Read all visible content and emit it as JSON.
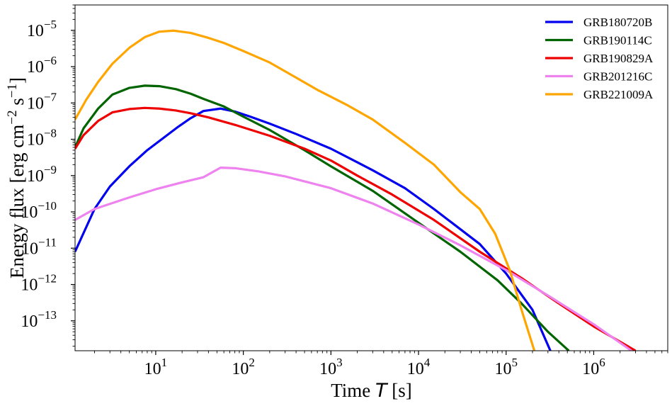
{
  "chart_data": {
    "type": "line",
    "xscale": "log",
    "yscale": "log",
    "xlim": [
      1.2,
      7000000
    ],
    "ylim": [
      1.5e-14,
      5e-05
    ],
    "xlabel": "Time T [s]",
    "xlabel_parts": {
      "prefix": "Time ",
      "var": "T",
      "suffix": " [s]"
    },
    "ylabel": "Energy flux [erg cm^-2 s^-1]",
    "ylabel_parts": {
      "prefix": "Energy flux [erg cm",
      "exp1": "−2",
      "mid": " s",
      "exp2": "−1",
      "suffix": "]"
    },
    "x_ticks": [
      {
        "value": 10,
        "base": "10",
        "exp": "1"
      },
      {
        "value": 100,
        "base": "10",
        "exp": "2"
      },
      {
        "value": 1000,
        "base": "10",
        "exp": "3"
      },
      {
        "value": 10000,
        "base": "10",
        "exp": "4"
      },
      {
        "value": 100000,
        "base": "10",
        "exp": "5"
      },
      {
        "value": 1000000,
        "base": "10",
        "exp": "6"
      }
    ],
    "y_ticks": [
      {
        "value": 1e-13,
        "base": "10",
        "exp": "−13"
      },
      {
        "value": 1e-12,
        "base": "10",
        "exp": "−12"
      },
      {
        "value": 1e-11,
        "base": "10",
        "exp": "−11"
      },
      {
        "value": 1e-10,
        "base": "10",
        "exp": "−10"
      },
      {
        "value": 1e-09,
        "base": "10",
        "exp": "−9"
      },
      {
        "value": 1e-08,
        "base": "10",
        "exp": "−8"
      },
      {
        "value": 1e-07,
        "base": "10",
        "exp": "−7"
      },
      {
        "value": 1e-06,
        "base": "10",
        "exp": "−6"
      },
      {
        "value": 1e-05,
        "base": "10",
        "exp": "−5"
      }
    ],
    "legend_position": "top-right",
    "series": [
      {
        "name": "GRB180720B",
        "color": "#0000ee",
        "points": [
          [
            1.2,
            8e-12
          ],
          [
            2,
            1.2e-10
          ],
          [
            3,
            5e-10
          ],
          [
            5,
            1.8e-09
          ],
          [
            8,
            5e-09
          ],
          [
            12,
            1.05e-08
          ],
          [
            18,
            2.2e-08
          ],
          [
            25,
            3.8e-08
          ],
          [
            35,
            6e-08
          ],
          [
            55,
            7e-08
          ],
          [
            80,
            5.8e-08
          ],
          [
            120,
            4.2e-08
          ],
          [
            200,
            2.7e-08
          ],
          [
            400,
            1.4e-08
          ],
          [
            1000,
            5.5e-09
          ],
          [
            3000,
            1.4e-09
          ],
          [
            7000,
            4.5e-10
          ],
          [
            15000,
            1.2e-10
          ],
          [
            50000,
            1.3e-11
          ],
          [
            100000,
            2e-12
          ],
          [
            200000,
            2e-13
          ],
          [
            320000,
            1.5e-14
          ]
        ]
      },
      {
        "name": "GRB190114C",
        "color": "#006400",
        "points": [
          [
            1.2,
            6e-09
          ],
          [
            1.5,
            2e-08
          ],
          [
            2.2,
            7e-08
          ],
          [
            3.2,
            1.7e-07
          ],
          [
            5,
            2.6e-07
          ],
          [
            7.5,
            3e-07
          ],
          [
            11,
            2.9e-07
          ],
          [
            17,
            2.4e-07
          ],
          [
            25,
            1.8e-07
          ],
          [
            35,
            1.3e-07
          ],
          [
            60,
            8e-08
          ],
          [
            100,
            4.2e-08
          ],
          [
            200,
            1.8e-08
          ],
          [
            500,
            5e-09
          ],
          [
            1000,
            1.8e-09
          ],
          [
            3000,
            3.8e-10
          ],
          [
            10000,
            5e-11
          ],
          [
            30000,
            8e-12
          ],
          [
            80000,
            1.3e-12
          ],
          [
            150000,
            3e-13
          ],
          [
            300000,
            5e-14
          ],
          [
            520000,
            1.5e-14
          ]
        ]
      },
      {
        "name": "GRB190829A",
        "color": "#ee0000",
        "points": [
          [
            1.2,
            5.5e-09
          ],
          [
            1.5,
            1.3e-08
          ],
          [
            2.2,
            3.2e-08
          ],
          [
            3.2,
            5.5e-08
          ],
          [
            5,
            6.8e-08
          ],
          [
            7.5,
            7.3e-08
          ],
          [
            11,
            7e-08
          ],
          [
            17,
            6.2e-08
          ],
          [
            25,
            5.2e-08
          ],
          [
            40,
            4e-08
          ],
          [
            80,
            2.5e-08
          ],
          [
            200,
            1.25e-08
          ],
          [
            500,
            5.5e-09
          ],
          [
            1000,
            2.6e-09
          ],
          [
            2000,
            1e-09
          ],
          [
            5000,
            3e-10
          ],
          [
            15000,
            6e-11
          ],
          [
            50000,
            8e-12
          ],
          [
            150000,
            1.5e-12
          ],
          [
            400000,
            3e-13
          ],
          [
            1000000,
            7e-14
          ],
          [
            3000000,
            1.5e-14
          ]
        ]
      },
      {
        "name": "GRB201216C",
        "color": "#ee82ee",
        "points": [
          [
            1.2,
            6e-11
          ],
          [
            2,
            1.2e-10
          ],
          [
            5,
            2.5e-10
          ],
          [
            10,
            4.2e-10
          ],
          [
            20,
            6.5e-10
          ],
          [
            35,
            9e-10
          ],
          [
            55,
            1.65e-09
          ],
          [
            80,
            1.6e-09
          ],
          [
            150,
            1.3e-09
          ],
          [
            300,
            9.5e-10
          ],
          [
            1000,
            4.5e-10
          ],
          [
            3000,
            1.7e-10
          ],
          [
            10000,
            4.5e-11
          ],
          [
            30000,
            1.2e-11
          ],
          [
            100000,
            2.5e-12
          ],
          [
            300000,
            5e-13
          ],
          [
            1000000,
            8e-14
          ],
          [
            2700000,
            1.5e-14
          ]
        ]
      },
      {
        "name": "GRB221009A",
        "color": "#ffa500",
        "points": [
          [
            1.2,
            3.5e-08
          ],
          [
            1.6,
            1.2e-07
          ],
          [
            2.2,
            3.8e-07
          ],
          [
            3.2,
            1.2e-06
          ],
          [
            5,
            3.3e-06
          ],
          [
            7.5,
            6.5e-06
          ],
          [
            11,
            9.2e-06
          ],
          [
            16,
            9.8e-06
          ],
          [
            25,
            8.5e-06
          ],
          [
            40,
            6.2e-06
          ],
          [
            60,
            4.5e-06
          ],
          [
            100,
            2.7e-06
          ],
          [
            200,
            1.3e-06
          ],
          [
            400,
            5e-07
          ],
          [
            700,
            2.3e-07
          ],
          [
            1500,
            9e-08
          ],
          [
            3000,
            3.5e-08
          ],
          [
            7000,
            8e-09
          ],
          [
            15000,
            2e-09
          ],
          [
            30000,
            3.5e-10
          ],
          [
            50000,
            1.2e-10
          ],
          [
            75000,
            2.5e-11
          ],
          [
            110000,
            2.5e-12
          ],
          [
            150000,
            2e-13
          ],
          [
            210000,
            1.5e-14
          ]
        ]
      }
    ]
  }
}
